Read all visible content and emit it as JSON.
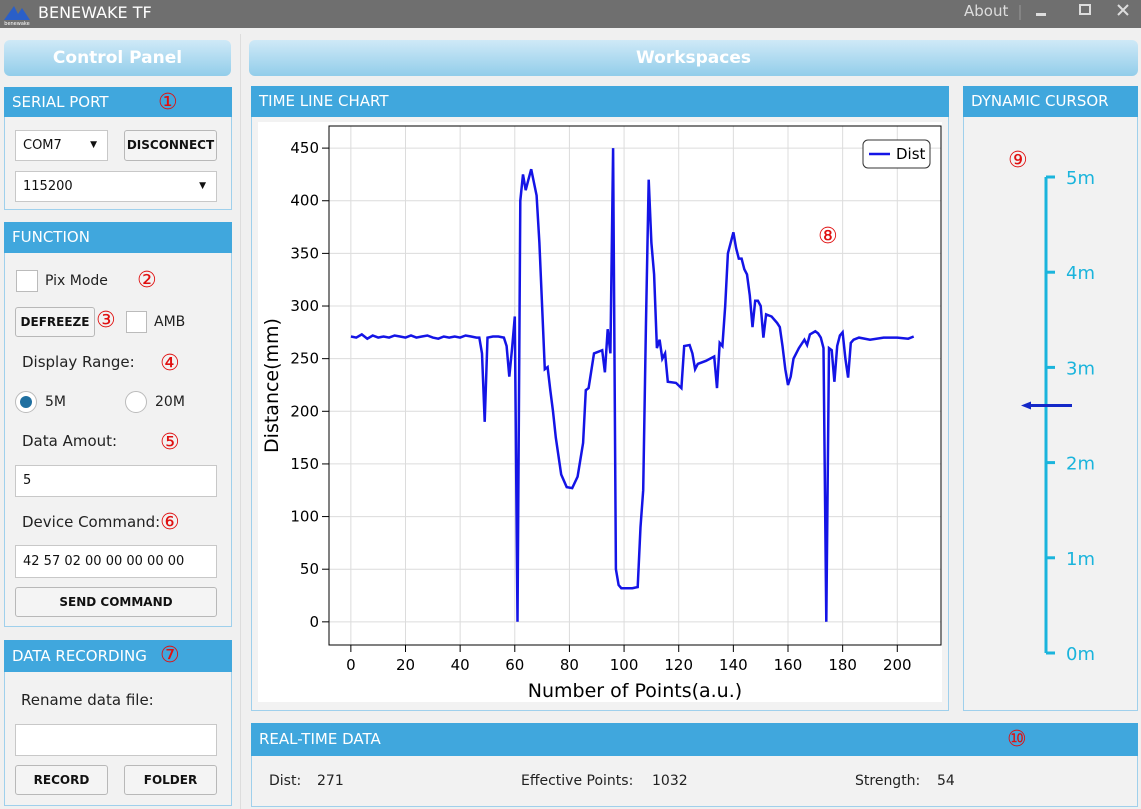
{
  "app": {
    "title": "BENEWAKE TF",
    "logo_text": "benewake",
    "about": "About"
  },
  "control_panel": {
    "title": "Control Panel",
    "serial_port": {
      "title": "SERIAL PORT",
      "marker": "①",
      "port": "COM7",
      "button": "DISCONNECT",
      "baud": "115200"
    },
    "function": {
      "title": "FUNCTION",
      "pix_mode": "Pix Mode",
      "marker_pix": "②",
      "defreeze": "DEFREEZE",
      "marker_defreeze": "③",
      "amb": "AMB",
      "display_range": "Display Range:",
      "marker_range": "④",
      "range_options": [
        "5M",
        "20M"
      ],
      "data_amount_label": "Data Amout:",
      "marker_amount": "⑤",
      "data_amount": "5",
      "device_command_label": "Device Command:",
      "marker_command": "⑥",
      "device_command": "42 57 02 00 00 00 00 00",
      "send": "SEND COMMAND"
    },
    "data_recording": {
      "title": "DATA RECORDING",
      "marker": "⑦",
      "rename_label": "Rename data file:",
      "record": "RECORD",
      "folder": "FOLDER"
    }
  },
  "workspaces": {
    "title": "Workspaces",
    "time_line_chart": {
      "title": "TIME LINE CHART",
      "marker": "⑧"
    },
    "dynamic_cursor": {
      "title": "DYNAMIC CURSOR",
      "marker": "⑨"
    },
    "real_time_data": {
      "title": "REAL-TIME DATA",
      "marker": "⑩",
      "dist_label": "Dist:",
      "dist": "271",
      "points_label": "Effective Points:",
      "points": "1032",
      "strength_label": "Strength:",
      "strength": "54"
    }
  },
  "chart_data": [
    {
      "type": "line",
      "x_label": "Number of Points(a.u.)",
      "y_label": "Distance(mm)",
      "legend": "top-right",
      "grid": true,
      "xlim": [
        -8,
        216
      ],
      "ylim": [
        -22,
        471
      ],
      "xticks": [
        0,
        20,
        40,
        60,
        80,
        100,
        120,
        140,
        160,
        180,
        200
      ],
      "yticks": [
        0,
        50,
        100,
        150,
        200,
        250,
        300,
        350,
        400,
        450
      ],
      "x": [
        0,
        2,
        4,
        6,
        8,
        10,
        12,
        14,
        16,
        18,
        20,
        22,
        24,
        26,
        28,
        30,
        32,
        34,
        36,
        38,
        40,
        42,
        44,
        46,
        47,
        48,
        49,
        50,
        52,
        54,
        56,
        57,
        58,
        59,
        60,
        61,
        62,
        63,
        64,
        65,
        66,
        68,
        69,
        70,
        71,
        72,
        73,
        74,
        75,
        77,
        79,
        81,
        83,
        85,
        86,
        87,
        89,
        92,
        93,
        94,
        95,
        96,
        97,
        98,
        99,
        103,
        105,
        106,
        107,
        108,
        109,
        110,
        111,
        112,
        113,
        114,
        115,
        116,
        119,
        121,
        122,
        124,
        125,
        126,
        127,
        130,
        133,
        134,
        135,
        136,
        137,
        138,
        140,
        141,
        142,
        143,
        144,
        145,
        146,
        147,
        148,
        149,
        150,
        151,
        152,
        154,
        156,
        157,
        158,
        159,
        160,
        161,
        162,
        164,
        166,
        167,
        168,
        170,
        171,
        172,
        173,
        174,
        175,
        176,
        177,
        178,
        179,
        180,
        181,
        182,
        183,
        184,
        186,
        190,
        195,
        200,
        204,
        206
      ],
      "series": [
        {
          "name": "Dist",
          "color": "#1414e6",
          "values": [
            271,
            270,
            273,
            269,
            272,
            270,
            271,
            270,
            272,
            271,
            270,
            272,
            270,
            271,
            272,
            270,
            269,
            271,
            270,
            271,
            270,
            272,
            271,
            270,
            270,
            255,
            190,
            270,
            271,
            271,
            270,
            262,
            233,
            260,
            290,
            0,
            400,
            425,
            410,
            420,
            430,
            405,
            360,
            300,
            240,
            242,
            220,
            200,
            175,
            140,
            128,
            127,
            138,
            170,
            220,
            222,
            255,
            258,
            237,
            278,
            255,
            450,
            50,
            35,
            32,
            32,
            33,
            90,
            125,
            280,
            420,
            360,
            330,
            260,
            268,
            250,
            255,
            228,
            227,
            222,
            262,
            263,
            255,
            240,
            245,
            248,
            252,
            222,
            265,
            262,
            300,
            350,
            370,
            355,
            345,
            345,
            335,
            330,
            310,
            280,
            305,
            305,
            300,
            270,
            292,
            290,
            284,
            280,
            262,
            240,
            225,
            233,
            250,
            260,
            268,
            263,
            273,
            276,
            274,
            270,
            260,
            0,
            260,
            258,
            228,
            262,
            272,
            275,
            250,
            232,
            265,
            268,
            270,
            268,
            270,
            270,
            269,
            271
          ]
        }
      ]
    },
    {
      "type": "cursor",
      "color": "#1ab4dc",
      "marker_color": "#1428c8",
      "ylim": [
        0,
        5
      ],
      "yticks": [
        {
          "value": 0,
          "label": "0m"
        },
        {
          "value": 1,
          "label": "1m"
        },
        {
          "value": 2,
          "label": "2m"
        },
        {
          "value": 3,
          "label": "3m"
        },
        {
          "value": 4,
          "label": "4m"
        },
        {
          "value": 5,
          "label": "5m"
        }
      ],
      "value": 2.6
    }
  ]
}
